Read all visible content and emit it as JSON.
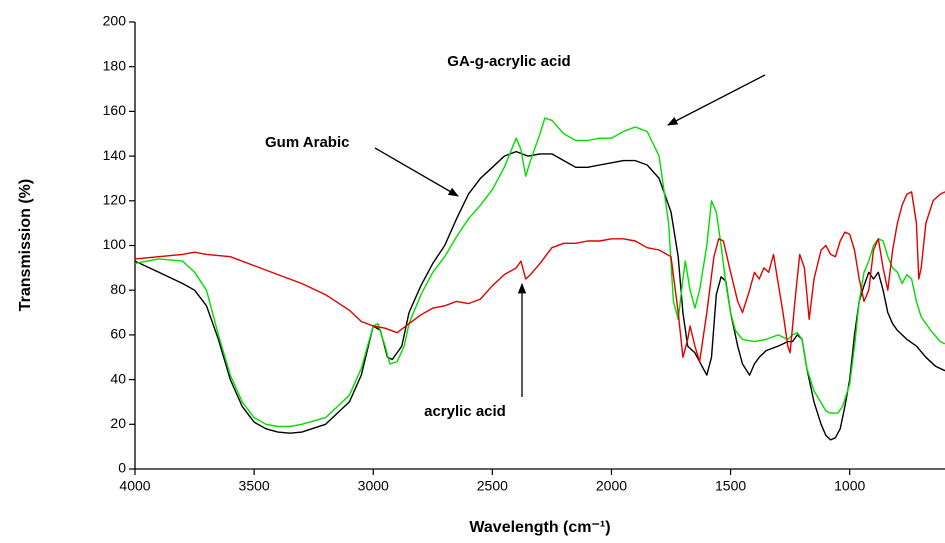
{
  "chart_data": {
    "type": "line",
    "x_label": "Wavelength (cm⁻¹)",
    "y_label": "Transmission (%)",
    "xlim": [
      4000,
      600
    ],
    "ylim": [
      0,
      200
    ],
    "xticks": [
      4000,
      3500,
      3000,
      2500,
      2000,
      1500,
      1000
    ],
    "yticks": [
      0,
      20,
      40,
      60,
      80,
      100,
      120,
      140,
      160,
      180,
      200
    ],
    "series": [
      {
        "name": "Gum Arabic",
        "color": "#000000",
        "x": [
          4000,
          3900,
          3800,
          3750,
          3700,
          3650,
          3600,
          3550,
          3500,
          3450,
          3400,
          3350,
          3300,
          3200,
          3100,
          3050,
          3000,
          2970,
          2940,
          2920,
          2880,
          2850,
          2800,
          2750,
          2700,
          2650,
          2600,
          2550,
          2500,
          2450,
          2400,
          2350,
          2300,
          2250,
          2200,
          2150,
          2100,
          2050,
          2000,
          1950,
          1900,
          1850,
          1800,
          1750,
          1720,
          1700,
          1680,
          1650,
          1620,
          1600,
          1580,
          1560,
          1540,
          1520,
          1500,
          1470,
          1450,
          1420,
          1400,
          1380,
          1350,
          1300,
          1260,
          1240,
          1220,
          1200,
          1180,
          1150,
          1120,
          1100,
          1080,
          1060,
          1040,
          1020,
          1000,
          980,
          960,
          940,
          920,
          900,
          880,
          860,
          840,
          820,
          800,
          760,
          720,
          680,
          640,
          600
        ],
        "values": [
          93,
          88,
          83,
          80,
          73,
          58,
          40,
          28,
          21,
          18,
          16.5,
          16,
          16.5,
          20,
          30,
          42,
          64,
          62,
          50,
          49,
          55,
          70,
          82,
          92,
          100,
          112,
          123,
          130,
          135,
          140,
          142,
          140,
          141,
          141,
          138,
          135,
          135,
          136,
          137,
          138,
          138,
          136,
          130,
          115,
          95,
          70,
          55,
          52,
          46,
          42,
          50,
          78,
          86,
          84,
          70,
          55,
          47,
          42,
          47,
          50,
          53,
          55,
          57,
          57,
          60,
          58,
          45,
          30,
          20,
          15,
          13,
          14,
          18,
          28,
          40,
          60,
          75,
          82,
          88,
          85,
          88,
          80,
          70,
          65,
          62,
          58,
          55,
          50,
          46,
          44
        ]
      },
      {
        "name": "GA-g-acrylic acid",
        "color": "#00dd00",
        "x": [
          4000,
          3900,
          3800,
          3750,
          3700,
          3650,
          3600,
          3550,
          3500,
          3450,
          3400,
          3350,
          3300,
          3200,
          3100,
          3050,
          3000,
          2980,
          2950,
          2930,
          2900,
          2870,
          2850,
          2800,
          2750,
          2700,
          2650,
          2600,
          2550,
          2500,
          2450,
          2400,
          2380,
          2360,
          2340,
          2300,
          2280,
          2250,
          2200,
          2150,
          2100,
          2050,
          2000,
          1950,
          1900,
          1850,
          1800,
          1760,
          1740,
          1720,
          1700,
          1690,
          1670,
          1650,
          1630,
          1600,
          1580,
          1560,
          1540,
          1520,
          1500,
          1480,
          1450,
          1400,
          1350,
          1300,
          1260,
          1240,
          1220,
          1200,
          1180,
          1150,
          1100,
          1080,
          1050,
          1030,
          1000,
          980,
          960,
          940,
          920,
          900,
          880,
          860,
          840,
          820,
          800,
          780,
          760,
          740,
          720,
          700,
          660,
          620,
          600
        ],
        "values": [
          92,
          94,
          93,
          88,
          80,
          60,
          42,
          30,
          23,
          20,
          19,
          19,
          20,
          23,
          33,
          45,
          64,
          65,
          55,
          47,
          48,
          55,
          65,
          78,
          88,
          95,
          104,
          112,
          118,
          125,
          135,
          148,
          143,
          131,
          138,
          150,
          157,
          156,
          150,
          147,
          147,
          148,
          148,
          151,
          153,
          151,
          140,
          110,
          75,
          67,
          85,
          93,
          80,
          72,
          80,
          100,
          120,
          115,
          100,
          83,
          70,
          62,
          58,
          57,
          58,
          60,
          58,
          60,
          61,
          58,
          45,
          35,
          26,
          25,
          25,
          28,
          38,
          55,
          75,
          88,
          93,
          100,
          103,
          102,
          95,
          90,
          88,
          83,
          87,
          85,
          75,
          68,
          62,
          57,
          56
        ]
      },
      {
        "name": "acrylic acid",
        "color": "#e00000",
        "x": [
          4000,
          3900,
          3800,
          3750,
          3700,
          3600,
          3500,
          3400,
          3300,
          3200,
          3100,
          3050,
          3000,
          2950,
          2900,
          2850,
          2800,
          2750,
          2700,
          2650,
          2600,
          2550,
          2500,
          2450,
          2400,
          2380,
          2360,
          2340,
          2300,
          2250,
          2200,
          2150,
          2100,
          2050,
          2000,
          1950,
          1900,
          1850,
          1800,
          1750,
          1720,
          1700,
          1680,
          1670,
          1650,
          1630,
          1600,
          1570,
          1550,
          1530,
          1500,
          1470,
          1450,
          1420,
          1400,
          1380,
          1360,
          1340,
          1320,
          1300,
          1280,
          1260,
          1250,
          1230,
          1210,
          1190,
          1170,
          1150,
          1120,
          1100,
          1080,
          1060,
          1040,
          1020,
          1000,
          980,
          960,
          940,
          920,
          900,
          880,
          860,
          840,
          820,
          800,
          780,
          760,
          740,
          720,
          710,
          700,
          680,
          650,
          620,
          600
        ],
        "values": [
          94,
          95,
          96,
          97,
          96,
          95,
          91,
          87,
          83,
          78,
          71,
          66,
          64,
          63,
          61,
          65,
          69,
          72,
          73,
          75,
          74,
          76,
          82,
          87,
          90,
          93,
          85,
          87,
          92,
          99,
          101,
          101,
          102,
          102,
          103,
          103,
          102,
          99,
          98,
          95,
          70,
          50,
          58,
          64,
          55,
          48,
          70,
          95,
          103,
          102,
          88,
          75,
          70,
          80,
          88,
          85,
          90,
          88,
          96,
          83,
          70,
          55,
          52,
          75,
          96,
          90,
          67,
          85,
          98,
          100,
          96,
          95,
          102,
          106,
          105,
          98,
          85,
          75,
          80,
          98,
          103,
          90,
          80,
          98,
          110,
          118,
          123,
          124,
          110,
          85,
          90,
          110,
          120,
          123,
          124
        ]
      }
    ]
  }
}
